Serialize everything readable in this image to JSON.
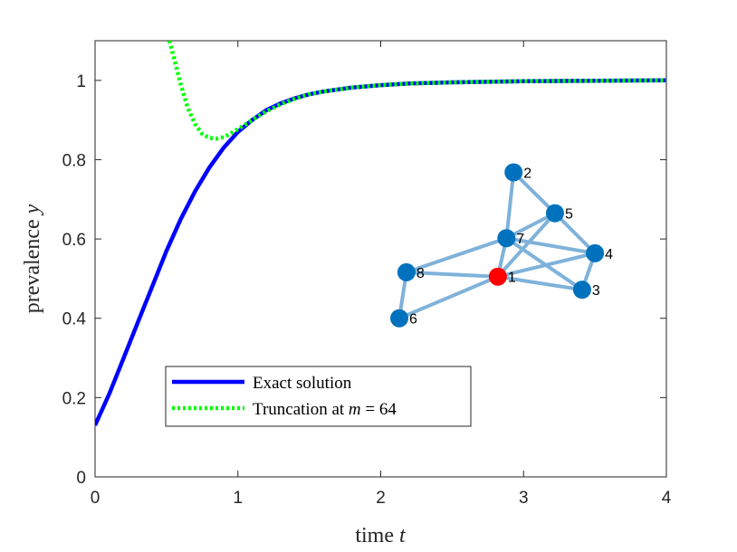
{
  "chart_data": {
    "type": "line",
    "xlabel": "time t",
    "ylabel": "prevalence y",
    "xlim": [
      0,
      4
    ],
    "ylim": [
      0,
      1.1
    ],
    "xticks": [
      "0",
      "1",
      "2",
      "3",
      "4"
    ],
    "yticks": [
      "0",
      "0.2",
      "0.4",
      "0.6",
      "0.8",
      "1"
    ],
    "grid": false,
    "legend_position": "bottom-left",
    "series": [
      {
        "name": "Exact solution",
        "color": "#0000ff",
        "style": "solid",
        "x": [
          0,
          0.1,
          0.2,
          0.3,
          0.4,
          0.5,
          0.6,
          0.7,
          0.8,
          0.9,
          1.0,
          1.1,
          1.2,
          1.3,
          1.4,
          1.5,
          1.6,
          1.8,
          2.0,
          2.2,
          2.5,
          3.0,
          3.5,
          4.0
        ],
        "y": [
          0.13,
          0.21,
          0.3,
          0.39,
          0.48,
          0.57,
          0.65,
          0.72,
          0.78,
          0.83,
          0.87,
          0.9,
          0.925,
          0.942,
          0.955,
          0.965,
          0.972,
          0.982,
          0.988,
          0.992,
          0.995,
          0.998,
          0.999,
          1.0
        ]
      },
      {
        "name": "Truncation at m = 64",
        "color": "#00ff00",
        "style": "dotted",
        "x": [
          0.52,
          0.55,
          0.6,
          0.65,
          0.7,
          0.75,
          0.8,
          0.85,
          0.9,
          0.95,
          1.0,
          1.05,
          1.1,
          1.2,
          1.3,
          1.4,
          1.5,
          1.6,
          1.8,
          2.0,
          2.2,
          2.5,
          3.0,
          3.5,
          4.0
        ],
        "y": [
          1.1,
          1.06,
          0.99,
          0.93,
          0.89,
          0.865,
          0.855,
          0.853,
          0.857,
          0.866,
          0.877,
          0.888,
          0.9,
          0.922,
          0.94,
          0.954,
          0.965,
          0.972,
          0.982,
          0.988,
          0.992,
          0.995,
          0.998,
          0.999,
          1.0
        ]
      }
    ],
    "inset_network": {
      "edge_color": "#7fb2da",
      "node_color": "#0072bd",
      "highlight_color": "#ff0000",
      "nodes": [
        {
          "id": "1",
          "x": 2.82,
          "y": 0.505,
          "highlight": true
        },
        {
          "id": "2",
          "x": 2.93,
          "y": 0.768,
          "highlight": false
        },
        {
          "id": "3",
          "x": 3.41,
          "y": 0.472,
          "highlight": false
        },
        {
          "id": "4",
          "x": 3.5,
          "y": 0.564,
          "highlight": false
        },
        {
          "id": "5",
          "x": 3.22,
          "y": 0.665,
          "highlight": false
        },
        {
          "id": "6",
          "x": 2.13,
          "y": 0.4,
          "highlight": false
        },
        {
          "id": "7",
          "x": 2.88,
          "y": 0.602,
          "highlight": false
        },
        {
          "id": "8",
          "x": 2.18,
          "y": 0.516,
          "highlight": false
        }
      ],
      "edges": [
        [
          "1",
          "7"
        ],
        [
          "1",
          "8"
        ],
        [
          "1",
          "5"
        ],
        [
          "1",
          "4"
        ],
        [
          "1",
          "3"
        ],
        [
          "2",
          "7"
        ],
        [
          "2",
          "5"
        ],
        [
          "7",
          "5"
        ],
        [
          "7",
          "4"
        ],
        [
          "7",
          "3"
        ],
        [
          "7",
          "8"
        ],
        [
          "5",
          "4"
        ],
        [
          "4",
          "3"
        ],
        [
          "8",
          "6"
        ],
        [
          "6",
          "1"
        ]
      ]
    }
  }
}
